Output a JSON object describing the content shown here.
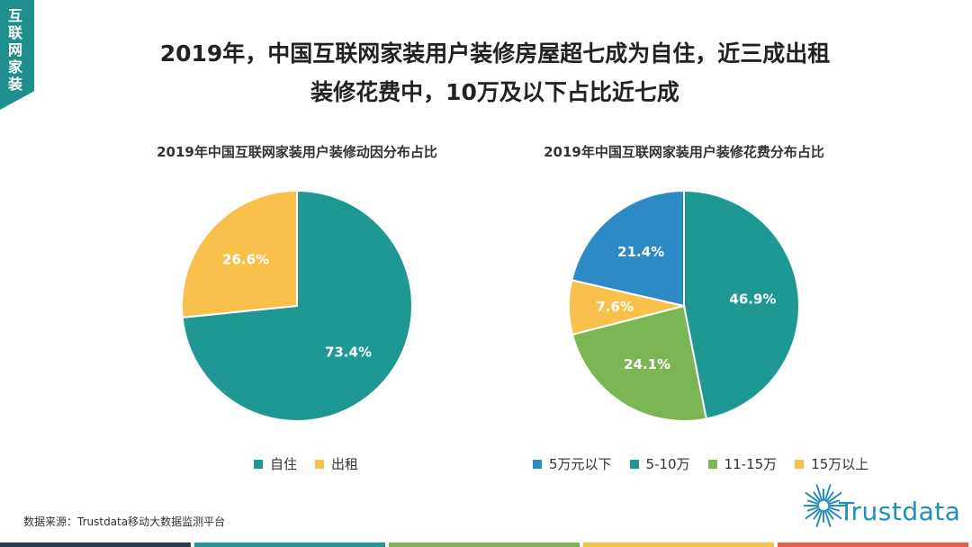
{
  "tag": {
    "label": "互联网家装"
  },
  "title": {
    "line1": "2019年，中国互联网家装用户装修房屋超七成为自住，近三成出租",
    "line2": "装修花费中，10万及以下占比近七成"
  },
  "source": "数据来源：Trustdata移动大数据监测平台",
  "logo": {
    "text": "Trustdata"
  },
  "colors": {
    "teal": "#1f9894",
    "yellow": "#f9c14c",
    "blue": "#2e8ac6",
    "green": "#7bb654",
    "accent": "#1e8f8c"
  },
  "bottom_bar_colors": [
    "#2b3b4d",
    "#1f9894",
    "#7bb654",
    "#f9c14c",
    "#e85c4a"
  ],
  "chart_data": [
    {
      "type": "pie",
      "title": "2019年中国互联网家装用户装修动因分布占比",
      "slices": [
        {
          "label": "自住",
          "value": 73.4,
          "display": "73.4%",
          "color": "#1f9894"
        },
        {
          "label": "出租",
          "value": 26.6,
          "display": "26.6%",
          "color": "#f9c14c"
        }
      ],
      "legend_position": "bottom"
    },
    {
      "type": "pie",
      "title": "2019年中国互联网家装用户装修花费分布占比",
      "slices": [
        {
          "label": "5-10万",
          "value": 46.9,
          "display": "46.9%",
          "color": "#1f9894"
        },
        {
          "label": "11-15万",
          "value": 24.1,
          "display": "24.1%",
          "color": "#7bb654"
        },
        {
          "label": "15万以上",
          "value": 7.6,
          "display": "7.6%",
          "color": "#f9c14c"
        },
        {
          "label": "5万元以下",
          "value": 21.4,
          "display": "21.4%",
          "color": "#2e8ac6"
        }
      ],
      "legend_order": [
        "5万元以下",
        "5-10万",
        "11-15万",
        "15万以上"
      ],
      "legend_position": "bottom"
    }
  ]
}
